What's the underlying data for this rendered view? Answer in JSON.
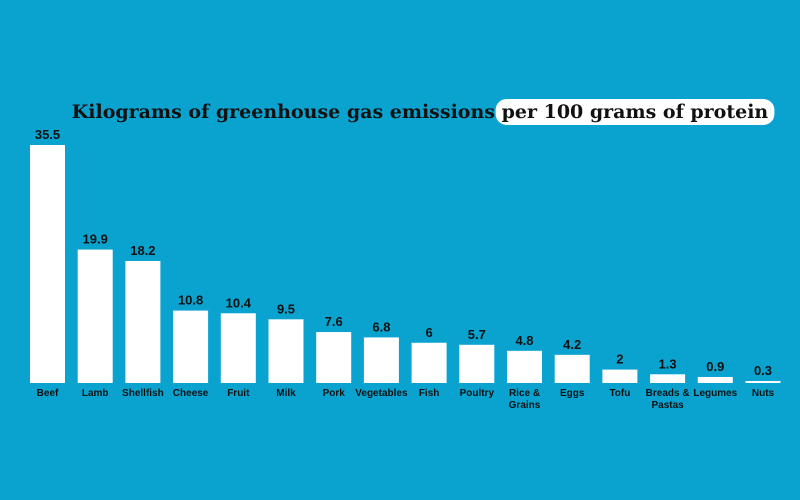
{
  "colors": {
    "background": "#0aa3cf",
    "bar": "#ffffff",
    "text": "#111111",
    "title_highlight": "#ffffff"
  },
  "chart_data": {
    "type": "bar",
    "title": "Kilograms of greenhouse gas emissions",
    "title_highlight": "per 100 grams of protein",
    "xlabel": "",
    "ylabel": "",
    "ylim": [
      0,
      35.5
    ],
    "grid": false,
    "categories": [
      "Beef",
      "Lamb",
      "Shellfish",
      "Cheese",
      "Fruit",
      "Milk",
      "Pork",
      "Vegetables",
      "Fish",
      "Poultry",
      "Rice & Grains",
      "Eggs",
      "Tofu",
      "Breads & Pastas",
      "Legumes",
      "Nuts"
    ],
    "values": [
      35.5,
      19.9,
      18.2,
      10.8,
      10.4,
      9.5,
      7.6,
      6.8,
      6,
      5.7,
      4.8,
      4.2,
      2,
      1.3,
      0.9,
      0.3
    ],
    "value_labels": [
      "35.5",
      "19.9",
      "18.2",
      "10.8",
      "10.4",
      "9.5",
      "7.6",
      "6.8",
      "6",
      "5.7",
      "4.8",
      "4.2",
      "2",
      "1.3",
      "0.9",
      "0.3"
    ]
  }
}
